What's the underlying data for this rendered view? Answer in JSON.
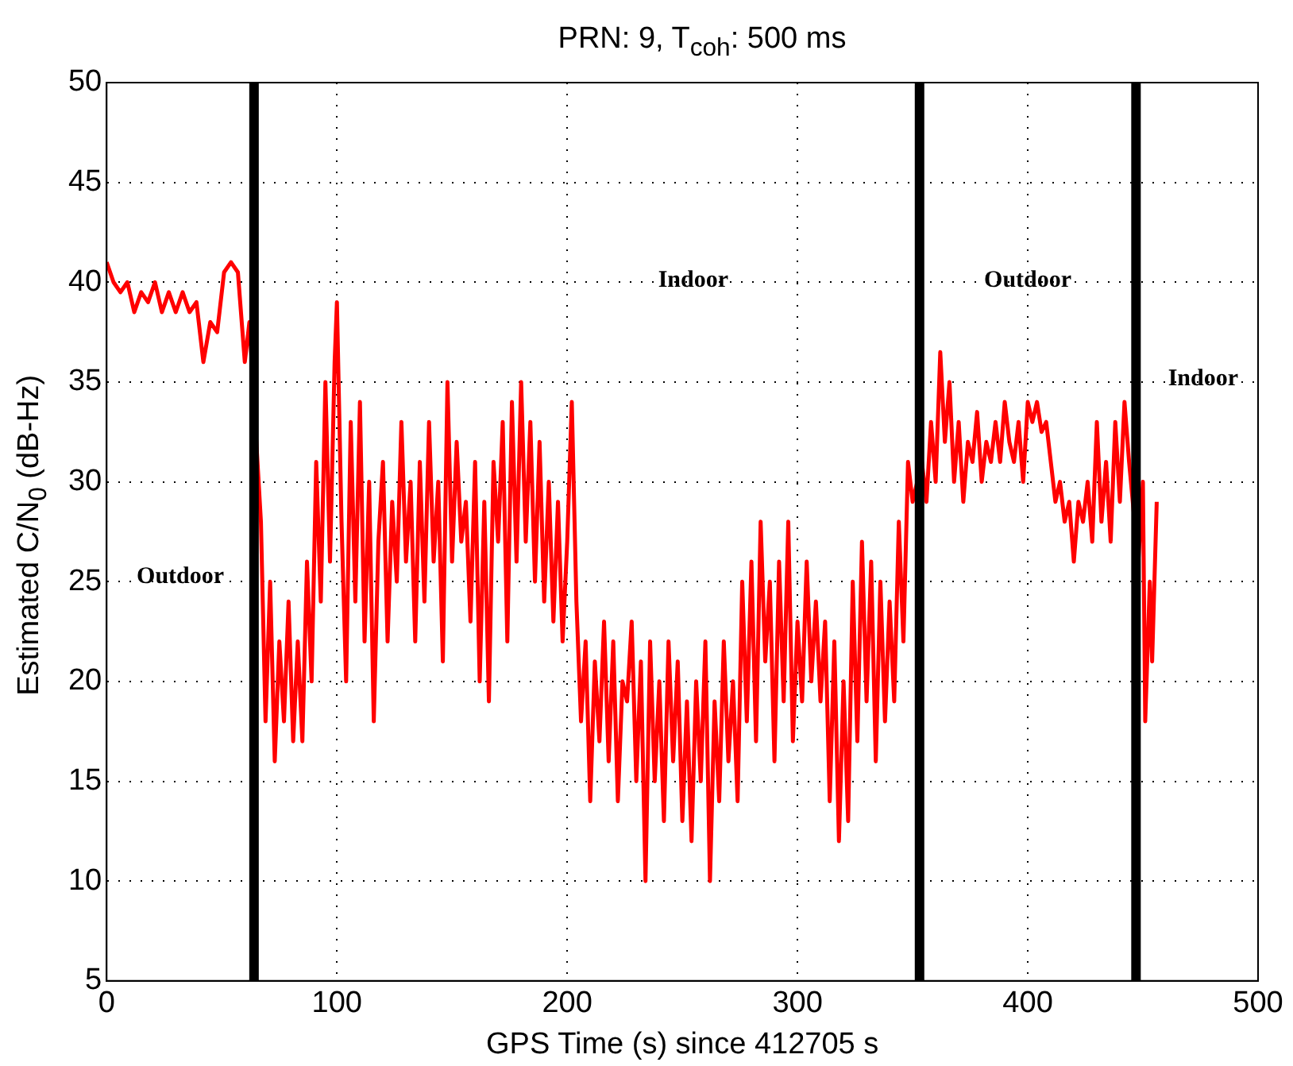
{
  "chart_data": {
    "type": "line",
    "title": "PRN: 9, T$_{coh}$: 500 ms",
    "xlabel": "GPS Time (s) since 412705 s",
    "ylabel": "Estimated C/N$_{0}$ (dB-Hz)",
    "x": [
      0,
      3,
      6,
      9,
      12,
      15,
      18,
      21,
      24,
      27,
      30,
      33,
      36,
      39,
      42,
      45,
      48,
      51,
      54,
      57,
      60,
      62,
      64,
      67,
      69,
      71,
      73,
      75,
      77,
      79,
      81,
      83,
      85,
      87,
      89,
      91,
      93,
      95,
      97,
      99,
      100,
      102,
      104,
      106,
      108,
      110,
      112,
      114,
      116,
      118,
      120,
      122,
      124,
      126,
      128,
      130,
      132,
      134,
      136,
      138,
      140,
      142,
      144,
      146,
      148,
      150,
      152,
      154,
      156,
      158,
      160,
      162,
      164,
      166,
      168,
      170,
      172,
      174,
      176,
      178,
      180,
      182,
      184,
      186,
      188,
      190,
      192,
      194,
      196,
      198,
      200,
      202,
      204,
      206,
      208,
      210,
      212,
      214,
      216,
      218,
      220,
      222,
      224,
      226,
      228,
      230,
      232,
      234,
      236,
      238,
      240,
      242,
      244,
      246,
      248,
      250,
      252,
      254,
      256,
      258,
      260,
      262,
      264,
      266,
      268,
      270,
      272,
      274,
      276,
      278,
      280,
      282,
      284,
      286,
      288,
      290,
      292,
      294,
      296,
      298,
      300,
      302,
      304,
      306,
      308,
      310,
      312,
      314,
      316,
      318,
      320,
      322,
      324,
      326,
      328,
      330,
      332,
      334,
      336,
      338,
      340,
      342,
      344,
      346,
      348,
      350,
      352,
      354,
      356,
      358,
      360,
      362,
      364,
      366,
      368,
      370,
      372,
      374,
      376,
      378,
      380,
      382,
      384,
      386,
      388,
      390,
      392,
      394,
      396,
      398,
      400,
      402,
      404,
      406,
      408,
      410,
      412,
      414,
      416,
      418,
      420,
      422,
      424,
      426,
      428,
      430,
      432,
      434,
      436,
      438,
      440,
      442,
      444,
      446,
      448,
      450,
      451,
      453,
      454,
      456
    ],
    "series": [
      {
        "color": "#ff0000",
        "values": [
          41,
          40,
          39.5,
          40,
          38.5,
          39.5,
          39,
          40,
          38.5,
          39.5,
          38.5,
          39.5,
          38.5,
          39,
          36,
          38,
          37.5,
          40.5,
          41,
          40.5,
          36,
          38,
          null,
          28,
          18,
          25,
          16,
          22,
          18,
          24,
          17,
          22,
          17,
          26,
          20,
          31,
          24,
          35,
          26,
          36,
          39,
          28,
          20,
          33,
          24,
          34,
          22,
          30,
          18,
          27,
          31,
          22,
          29,
          25,
          33,
          26,
          30,
          22,
          31,
          24,
          33,
          26,
          30,
          21,
          35,
          26,
          32,
          27,
          29,
          23,
          31,
          20,
          29,
          19,
          31,
          27,
          33,
          22,
          34,
          26,
          35,
          27,
          33,
          25,
          32,
          24,
          30,
          23,
          29,
          22,
          27,
          34,
          24,
          18,
          22,
          14,
          21,
          17,
          23,
          16,
          22,
          14,
          20,
          19,
          23,
          15,
          21,
          10,
          22,
          15,
          20,
          13,
          22,
          16,
          21,
          13,
          19,
          12,
          20,
          15,
          22,
          10,
          19,
          14,
          22,
          16,
          20,
          14,
          25,
          18,
          26,
          17,
          28,
          21,
          25,
          16,
          26,
          19,
          28,
          17,
          23,
          19,
          26,
          20,
          24,
          19,
          23,
          14,
          22,
          12,
          20,
          13,
          25,
          17,
          27,
          19,
          26,
          16,
          25,
          18,
          24,
          19,
          28,
          22,
          31,
          29,
          null,
          31,
          29,
          33,
          30,
          36.5,
          32,
          35,
          30,
          33,
          29,
          32,
          31,
          33.5,
          30,
          32,
          31,
          33,
          31,
          34,
          32,
          31,
          33,
          30,
          34,
          33,
          34,
          32.5,
          33,
          31,
          29,
          30,
          28,
          29,
          26,
          29,
          28,
          30,
          27,
          33,
          28,
          31,
          27,
          33,
          29,
          34,
          31,
          null,
          26,
          30,
          18,
          25,
          21,
          29
        ]
      }
    ],
    "xlim": [
      0,
      500
    ],
    "xticks": [
      0,
      100,
      200,
      300,
      400,
      500
    ],
    "ylim": [
      5,
      50
    ],
    "yticks": [
      5,
      10,
      15,
      20,
      25,
      30,
      35,
      40,
      45,
      50
    ],
    "grid": true,
    "marker": "none",
    "line_style": "solid",
    "legend": false,
    "ref_lines": [
      {
        "axis": "x",
        "value": 64,
        "color": "#000000"
      },
      {
        "axis": "x",
        "value": 353,
        "color": "#000000"
      },
      {
        "axis": "x",
        "value": 447,
        "color": "#000000"
      }
    ],
    "annotations": [
      "Outdoor",
      "Indoor",
      "Outdoor",
      "Indoor"
    ]
  }
}
